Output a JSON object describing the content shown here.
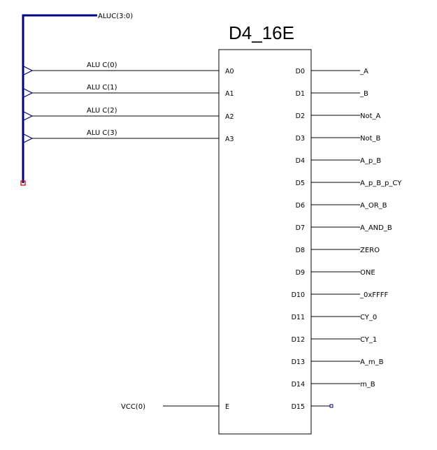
{
  "schematic": {
    "title": "D4_16E",
    "bus_label": "ALUC(3:0)",
    "vcc_label": "VCC(0)",
    "enable_pin": "E",
    "inputs": [
      {
        "net": "ALU C(0)",
        "pin": "A0"
      },
      {
        "net": "ALU C(1)",
        "pin": "A1"
      },
      {
        "net": "ALU C(2)",
        "pin": "A2"
      },
      {
        "net": "ALU C(3)",
        "pin": "A3"
      }
    ],
    "outputs": [
      {
        "pin": "D0",
        "net": "_A"
      },
      {
        "pin": "D1",
        "net": "_B"
      },
      {
        "pin": "D2",
        "net": "Not_A"
      },
      {
        "pin": "D3",
        "net": "Not_B"
      },
      {
        "pin": "D4",
        "net": "A_p_B"
      },
      {
        "pin": "D5",
        "net": "A_p_B_p_CY"
      },
      {
        "pin": "D6",
        "net": "A_OR_B"
      },
      {
        "pin": "D7",
        "net": "A_AND_B"
      },
      {
        "pin": "D8",
        "net": "ZERO"
      },
      {
        "pin": "D9",
        "net": "ONE"
      },
      {
        "pin": "D10",
        "net": "_0xFFFF"
      },
      {
        "pin": "D11",
        "net": "CY_0"
      },
      {
        "pin": "D12",
        "net": "CY_1"
      },
      {
        "pin": "D13",
        "net": "A_m_B"
      },
      {
        "pin": "D14",
        "net": "m_B"
      },
      {
        "pin": "D15",
        "net": ""
      }
    ]
  }
}
